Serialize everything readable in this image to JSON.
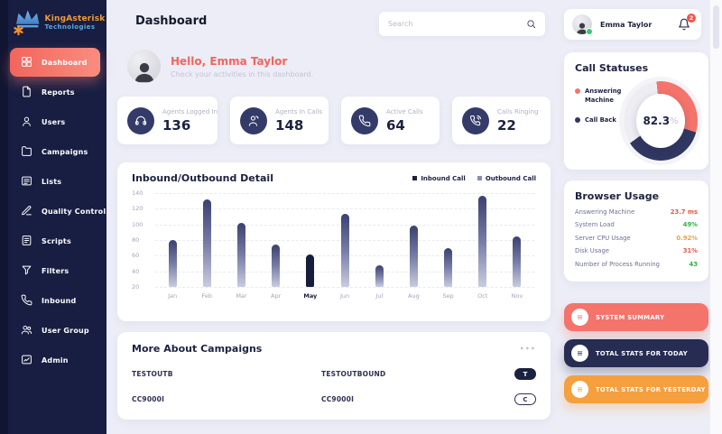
{
  "brand": {
    "line1": "KingAsterisk",
    "line2": "Technologies"
  },
  "header": {
    "title": "Dashboard",
    "search_placeholder": "Search"
  },
  "profile": {
    "name": "Emma Taylor",
    "notification_count": "2"
  },
  "greeting": {
    "title": "Hello, Emma Taylor",
    "subtitle": "Check your activities in this dashboard."
  },
  "sidebar": {
    "items": [
      {
        "label": "Dashboard",
        "icon": "dashboard",
        "active": true
      },
      {
        "label": "Reports",
        "icon": "reports",
        "active": false
      },
      {
        "label": "Users",
        "icon": "users",
        "active": false
      },
      {
        "label": "Campaigns",
        "icon": "campaigns",
        "active": false
      },
      {
        "label": "Lists",
        "icon": "lists",
        "active": false
      },
      {
        "label": "Quality Control",
        "icon": "quality-control",
        "active": false
      },
      {
        "label": "Scripts",
        "icon": "scripts",
        "active": false
      },
      {
        "label": "Filters",
        "icon": "filters",
        "active": false
      },
      {
        "label": "Inbound",
        "icon": "inbound",
        "active": false
      },
      {
        "label": "User Group",
        "icon": "user-group",
        "active": false
      },
      {
        "label": "Admin",
        "icon": "admin",
        "active": false
      }
    ]
  },
  "stats": [
    {
      "label": "Agents Logged In",
      "value": "136",
      "icon": "headset"
    },
    {
      "label": "Agents In Calls",
      "value": "148",
      "icon": "agent-call"
    },
    {
      "label": "Active Calls",
      "value": "64",
      "icon": "phone"
    },
    {
      "label": "Calls Ringing",
      "value": "22",
      "icon": "phone-ring"
    }
  ],
  "chart_card": {
    "title": "Inbound/Outbound Detail",
    "legend": [
      {
        "label": "Inbound Call",
        "color": "#1B2240"
      },
      {
        "label": "Outbound Call",
        "color": "#8B90AE"
      }
    ]
  },
  "chart_data": [
    {
      "type": "bar",
      "title": "Inbound/Outbound Detail",
      "categories": [
        "Jan",
        "Feb",
        "Mar",
        "Apr",
        "May",
        "Jun",
        "Jul",
        "Aug",
        "Sep",
        "Oct",
        "Nov"
      ],
      "values": [
        80,
        132,
        102,
        74,
        62,
        114,
        48,
        98,
        70,
        137,
        85
      ],
      "highlight_category": "May",
      "highlight_color": "#161D3D",
      "xlabel": "",
      "ylabel": "",
      "ylim": [
        20,
        140
      ],
      "ytick_step": 20,
      "grid": "dashed-horizontal",
      "bar_gradient": [
        "#3A4170",
        "#C9CCE0"
      ],
      "legend_position": "top-right"
    },
    {
      "type": "donut",
      "title": "Call Statuses",
      "center_label": "82.3",
      "center_unit": "%",
      "segments": [
        {
          "label": "Answering Machine",
          "color": "#F4736B",
          "percent": 33.3
        },
        {
          "label": "Call Back",
          "color": "#303760",
          "percent": 35.0
        },
        {
          "label": "Remainder",
          "color": "#EDEDF3",
          "percent": 31.7
        }
      ],
      "start_angle": -6
    }
  ],
  "call_statuses": {
    "title": "Call Statuses",
    "center_value": "82.3",
    "center_unit": "%",
    "track_color": "#EDEDF3",
    "angles": {
      "start": -6,
      "a1": 114,
      "a2": 240
    },
    "legend": [
      {
        "label": "Answering Machine",
        "color": "#F4736B"
      },
      {
        "label": "Call Back",
        "color": "#303760"
      }
    ]
  },
  "browser_usage": {
    "title": "Browser Usage",
    "rows": [
      {
        "label": "Answering Machine",
        "value": "23.7 ms",
        "color": "#E8574B"
      },
      {
        "label": "System Load",
        "value": "49%",
        "color": "#2FB344"
      },
      {
        "label": "Server CPU Usage",
        "value": "0.92%",
        "color": "#F59F3F"
      },
      {
        "label": "Disk Usage",
        "value": "31%",
        "color": "#E8574B"
      },
      {
        "label": "Number of Process Running",
        "value": "43",
        "color": "#2FB344"
      }
    ]
  },
  "action_buttons": [
    {
      "label": "SYSTEM SUMMARY",
      "bg": "#F4736B",
      "icon": "list-lines"
    },
    {
      "label": "TOTAL STATS FOR TODAY",
      "bg": "#262C52",
      "icon": "list-lines"
    },
    {
      "label": "TOTAL STATS FOR YESTERDAY",
      "bg": "#F59F3F",
      "icon": "list-lines"
    }
  ],
  "campaigns": {
    "title": "More About Campaigns",
    "menu_icon": "•••",
    "rows": [
      {
        "name": "TESTOUTB",
        "description": "TESTOUTBOUND",
        "badge": "T",
        "badge_style": "filled"
      },
      {
        "name": "CC9000I",
        "description": "CC9000I",
        "badge": "C",
        "badge_style": "outline"
      }
    ]
  }
}
